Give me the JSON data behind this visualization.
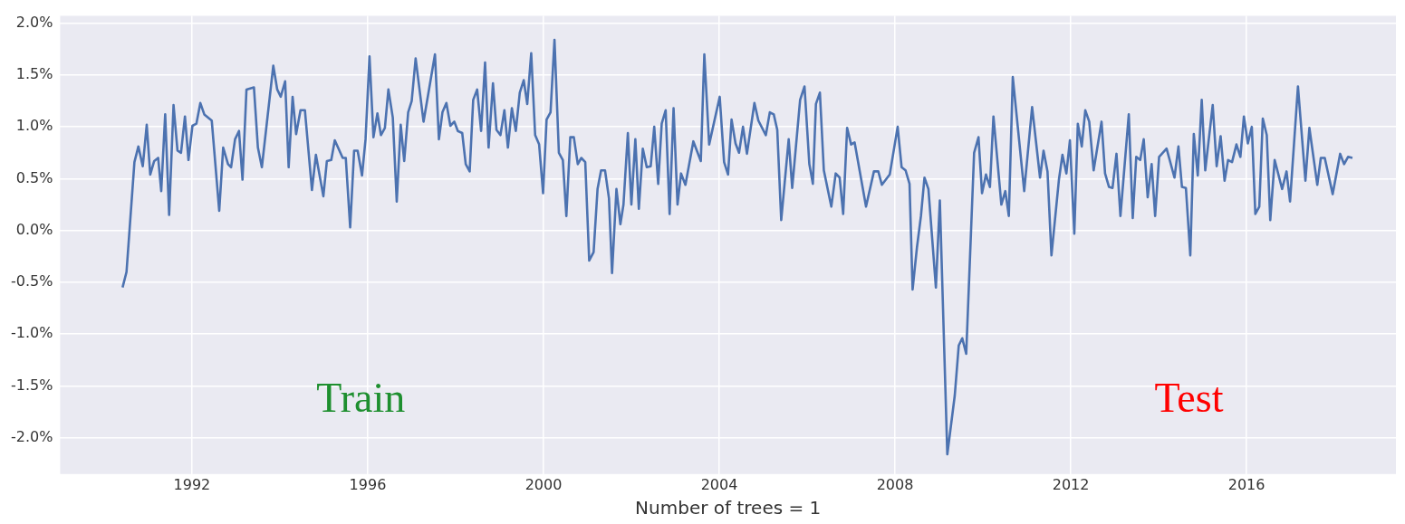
{
  "chart_data": {
    "type": "line",
    "xlabel": "Number of trees = 1",
    "annotations": [
      "Train",
      "Test"
    ],
    "xlim": [
      1989.0,
      2019.4
    ],
    "ylim": [
      -2.35,
      2.07
    ],
    "xticks": [
      1992,
      1996,
      2000,
      2004,
      2008,
      2012,
      2016
    ],
    "yticks": [
      {
        "value": -2,
        "label": "-2.0%"
      },
      {
        "value": -1.5,
        "label": "-1.5%"
      },
      {
        "value": -1,
        "label": "-1.0%"
      },
      {
        "value": -0.5,
        "label": "-0.5%"
      },
      {
        "value": 0,
        "label": "0.0%"
      },
      {
        "value": 0.5,
        "label": "0.5%"
      },
      {
        "value": 1,
        "label": "1.0%"
      },
      {
        "value": 1.5,
        "label": "1.5%"
      },
      {
        "value": 2,
        "label": "2.0%"
      }
    ],
    "grid": true,
    "marker": "none",
    "line_style": "solid",
    "series": [
      {
        "color": "#4c72b0",
        "x": [
          1990.42,
          1990.51,
          1990.69,
          1990.78,
          1990.88,
          1990.97,
          1991.05,
          1991.14,
          1991.23,
          1991.3,
          1991.39,
          1991.48,
          1991.58,
          1991.67,
          1991.75,
          1991.84,
          1991.92,
          1992.01,
          1992.1,
          1992.19,
          1992.28,
          1992.45,
          1992.62,
          1992.71,
          1992.82,
          1992.89,
          1992.98,
          1993.07,
          1993.15,
          1993.24,
          1993.41,
          1993.5,
          1993.59,
          1993.85,
          1993.94,
          1994.02,
          1994.12,
          1994.2,
          1994.29,
          1994.37,
          1994.47,
          1994.57,
          1994.73,
          1994.82,
          1994.99,
          1995.07,
          1995.17,
          1995.25,
          1995.43,
          1995.5,
          1995.6,
          1995.69,
          1995.77,
          1995.87,
          1995.95,
          1996.04,
          1996.13,
          1996.22,
          1996.3,
          1996.39,
          1996.47,
          1996.57,
          1996.66,
          1996.75,
          1996.83,
          1996.92,
          1997.0,
          1997.09,
          1997.27,
          1997.53,
          1997.62,
          1997.7,
          1997.79,
          1997.88,
          1997.97,
          1998.05,
          1998.15,
          1998.23,
          1998.32,
          1998.4,
          1998.49,
          1998.58,
          1998.67,
          1998.75,
          1998.85,
          1998.93,
          1999.02,
          1999.11,
          1999.19,
          1999.28,
          1999.37,
          1999.46,
          1999.55,
          1999.63,
          1999.72,
          1999.81,
          1999.9,
          1999.99,
          2000.07,
          2000.16,
          2000.25,
          2000.35,
          2000.44,
          2000.52,
          2000.61,
          2000.69,
          2000.78,
          2000.86,
          2000.95,
          2001.04,
          2001.14,
          2001.23,
          2001.31,
          2001.4,
          2001.49,
          2001.56,
          2001.66,
          2001.75,
          2001.82,
          2001.92,
          2002.0,
          2002.09,
          2002.17,
          2002.26,
          2002.35,
          2002.44,
          2002.52,
          2002.61,
          2002.69,
          2002.78,
          2002.87,
          2002.96,
          2003.05,
          2003.13,
          2003.23,
          2003.41,
          2003.58,
          2003.66,
          2003.77,
          2004.01,
          2004.11,
          2004.2,
          2004.28,
          2004.37,
          2004.45,
          2004.54,
          2004.63,
          2004.8,
          2004.89,
          2005.06,
          2005.15,
          2005.24,
          2005.32,
          2005.41,
          2005.58,
          2005.66,
          2005.84,
          2005.94,
          2006.05,
          2006.13,
          2006.2,
          2006.29,
          2006.38,
          2006.55,
          2006.65,
          2006.74,
          2006.82,
          2006.91,
          2007.0,
          2007.08,
          2007.34,
          2007.52,
          2007.62,
          2007.7,
          2007.88,
          2008.06,
          2008.15,
          2008.24,
          2008.33,
          2008.4,
          2008.5,
          2008.59,
          2008.67,
          2008.76,
          2008.93,
          2009.02,
          2009.19,
          2009.36,
          2009.45,
          2009.53,
          2009.62,
          2009.8,
          2009.9,
          2009.98,
          2010.07,
          2010.16,
          2010.24,
          2010.42,
          2010.51,
          2010.59,
          2010.68,
          2010.94,
          2011.12,
          2011.3,
          2011.38,
          2011.47,
          2011.56,
          2011.73,
          2011.81,
          2011.9,
          2011.98,
          2012.08,
          2012.16,
          2012.25,
          2012.33,
          2012.42,
          2012.52,
          2012.7,
          2012.78,
          2012.87,
          2012.95,
          2013.04,
          2013.13,
          2013.32,
          2013.41,
          2013.49,
          2013.58,
          2013.66,
          2013.75,
          2013.84,
          2013.92,
          2014.01,
          2014.18,
          2014.36,
          2014.45,
          2014.53,
          2014.62,
          2014.72,
          2014.8,
          2014.89,
          2014.98,
          2015.06,
          2015.23,
          2015.32,
          2015.41,
          2015.5,
          2015.58,
          2015.67,
          2015.77,
          2015.86,
          2015.94,
          2016.03,
          2016.12,
          2016.2,
          2016.29,
          2016.37,
          2016.46,
          2016.54,
          2016.64,
          2016.81,
          2016.91,
          2016.99,
          2017.17,
          2017.34,
          2017.43,
          2017.61,
          2017.69,
          2017.78,
          2017.96,
          2018.13,
          2018.22,
          2018.31,
          2018.41
        ],
        "values": [
          -0.55,
          -0.4,
          0.66,
          0.81,
          0.62,
          1.02,
          0.54,
          0.67,
          0.7,
          0.38,
          1.12,
          0.15,
          1.21,
          0.77,
          0.75,
          1.1,
          0.68,
          1.01,
          1.03,
          1.23,
          1.12,
          1.06,
          0.19,
          0.8,
          0.64,
          0.61,
          0.88,
          0.96,
          0.49,
          1.36,
          1.38,
          0.8,
          0.61,
          1.59,
          1.36,
          1.29,
          1.44,
          0.61,
          1.29,
          0.93,
          1.16,
          1.16,
          0.39,
          0.73,
          0.33,
          0.67,
          0.68,
          0.87,
          0.7,
          0.7,
          0.03,
          0.77,
          0.77,
          0.53,
          0.88,
          1.68,
          0.9,
          1.13,
          0.92,
          0.99,
          1.36,
          1.09,
          0.28,
          1.02,
          0.67,
          1.14,
          1.25,
          1.66,
          1.05,
          1.7,
          0.88,
          1.14,
          1.23,
          1.01,
          1.05,
          0.96,
          0.94,
          0.64,
          0.57,
          1.26,
          1.36,
          0.96,
          1.62,
          0.8,
          1.42,
          0.97,
          0.92,
          1.16,
          0.8,
          1.18,
          0.96,
          1.33,
          1.45,
          1.22,
          1.71,
          0.92,
          0.83,
          0.36,
          1.07,
          1.14,
          1.84,
          0.75,
          0.68,
          0.14,
          0.9,
          0.9,
          0.64,
          0.7,
          0.66,
          -0.29,
          -0.21,
          0.4,
          0.58,
          0.58,
          0.31,
          -0.41,
          0.4,
          0.06,
          0.25,
          0.94,
          0.25,
          0.88,
          0.21,
          0.79,
          0.61,
          0.62,
          1.0,
          0.45,
          1.03,
          1.16,
          0.16,
          1.18,
          0.25,
          0.55,
          0.44,
          0.86,
          0.67,
          1.7,
          0.83,
          1.29,
          0.66,
          0.54,
          1.07,
          0.84,
          0.75,
          1.0,
          0.74,
          1.23,
          1.06,
          0.92,
          1.14,
          1.12,
          0.97,
          0.1,
          0.88,
          0.41,
          1.26,
          1.39,
          0.64,
          0.45,
          1.22,
          1.33,
          0.58,
          0.23,
          0.55,
          0.51,
          0.16,
          0.99,
          0.83,
          0.85,
          0.23,
          0.57,
          0.57,
          0.44,
          0.54,
          1.0,
          0.61,
          0.58,
          0.45,
          -0.57,
          -0.16,
          0.14,
          0.51,
          0.4,
          -0.55,
          0.29,
          -2.16,
          -1.59,
          -1.11,
          -1.04,
          -1.19,
          0.75,
          0.9,
          0.36,
          0.54,
          0.42,
          1.1,
          0.25,
          0.38,
          0.14,
          1.48,
          0.38,
          1.19,
          0.51,
          0.77,
          0.57,
          -0.24,
          0.49,
          0.73,
          0.55,
          0.87,
          -0.03,
          1.03,
          0.81,
          1.16,
          1.05,
          0.58,
          1.05,
          0.55,
          0.42,
          0.41,
          0.74,
          0.14,
          1.12,
          0.12,
          0.71,
          0.68,
          0.88,
          0.32,
          0.64,
          0.14,
          0.71,
          0.79,
          0.51,
          0.81,
          0.42,
          0.41,
          -0.24,
          0.93,
          0.53,
          1.26,
          0.58,
          1.21,
          0.62,
          0.91,
          0.48,
          0.68,
          0.66,
          0.83,
          0.71,
          1.1,
          0.84,
          1.0,
          0.16,
          0.23,
          1.08,
          0.92,
          0.1,
          0.68,
          0.4,
          0.57,
          0.28,
          1.39,
          0.48,
          0.99,
          0.44,
          0.7,
          0.7,
          0.35,
          0.74,
          0.64,
          0.71,
          0.7
        ]
      }
    ]
  }
}
